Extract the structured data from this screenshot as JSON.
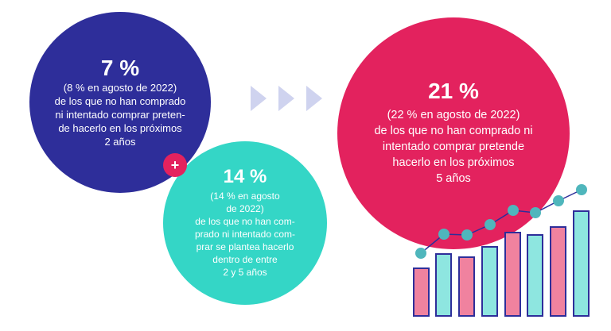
{
  "left_circle": {
    "percent": "7 %",
    "lines": [
      "(8 % en agosto de 2022)",
      "de los que no han comprado",
      "ni intentado comprar preten-",
      "de hacerlo en los próximos",
      "2 años"
    ],
    "color": "#2e2e9a"
  },
  "plus": {
    "symbol": "+",
    "color": "#e3225e"
  },
  "middle_circle": {
    "percent": "14 %",
    "lines": [
      "(14 % en agosto",
      "de 2022)",
      "de los que no han com-",
      "prado ni intentado com-",
      "prar se plantea hacerlo",
      "dentro de entre",
      "2 y 5 años"
    ],
    "color": "#34d6c6"
  },
  "right_circle": {
    "percent": "21 %",
    "lines": [
      "(22 % en agosto de 2022)",
      "de los que no han comprado ni",
      "intentado comprar pretende",
      "hacerlo en los próximos",
      "5 años"
    ],
    "color": "#e3225e"
  },
  "arrows": {
    "icon": "chevron-right-triangles",
    "color": "#cfd3ef"
  },
  "decoration": {
    "icon": "rising-bar-chart-illustration",
    "pink": "#f0829f",
    "teal": "#8ee6e0",
    "navy": "#2e2e9a"
  }
}
